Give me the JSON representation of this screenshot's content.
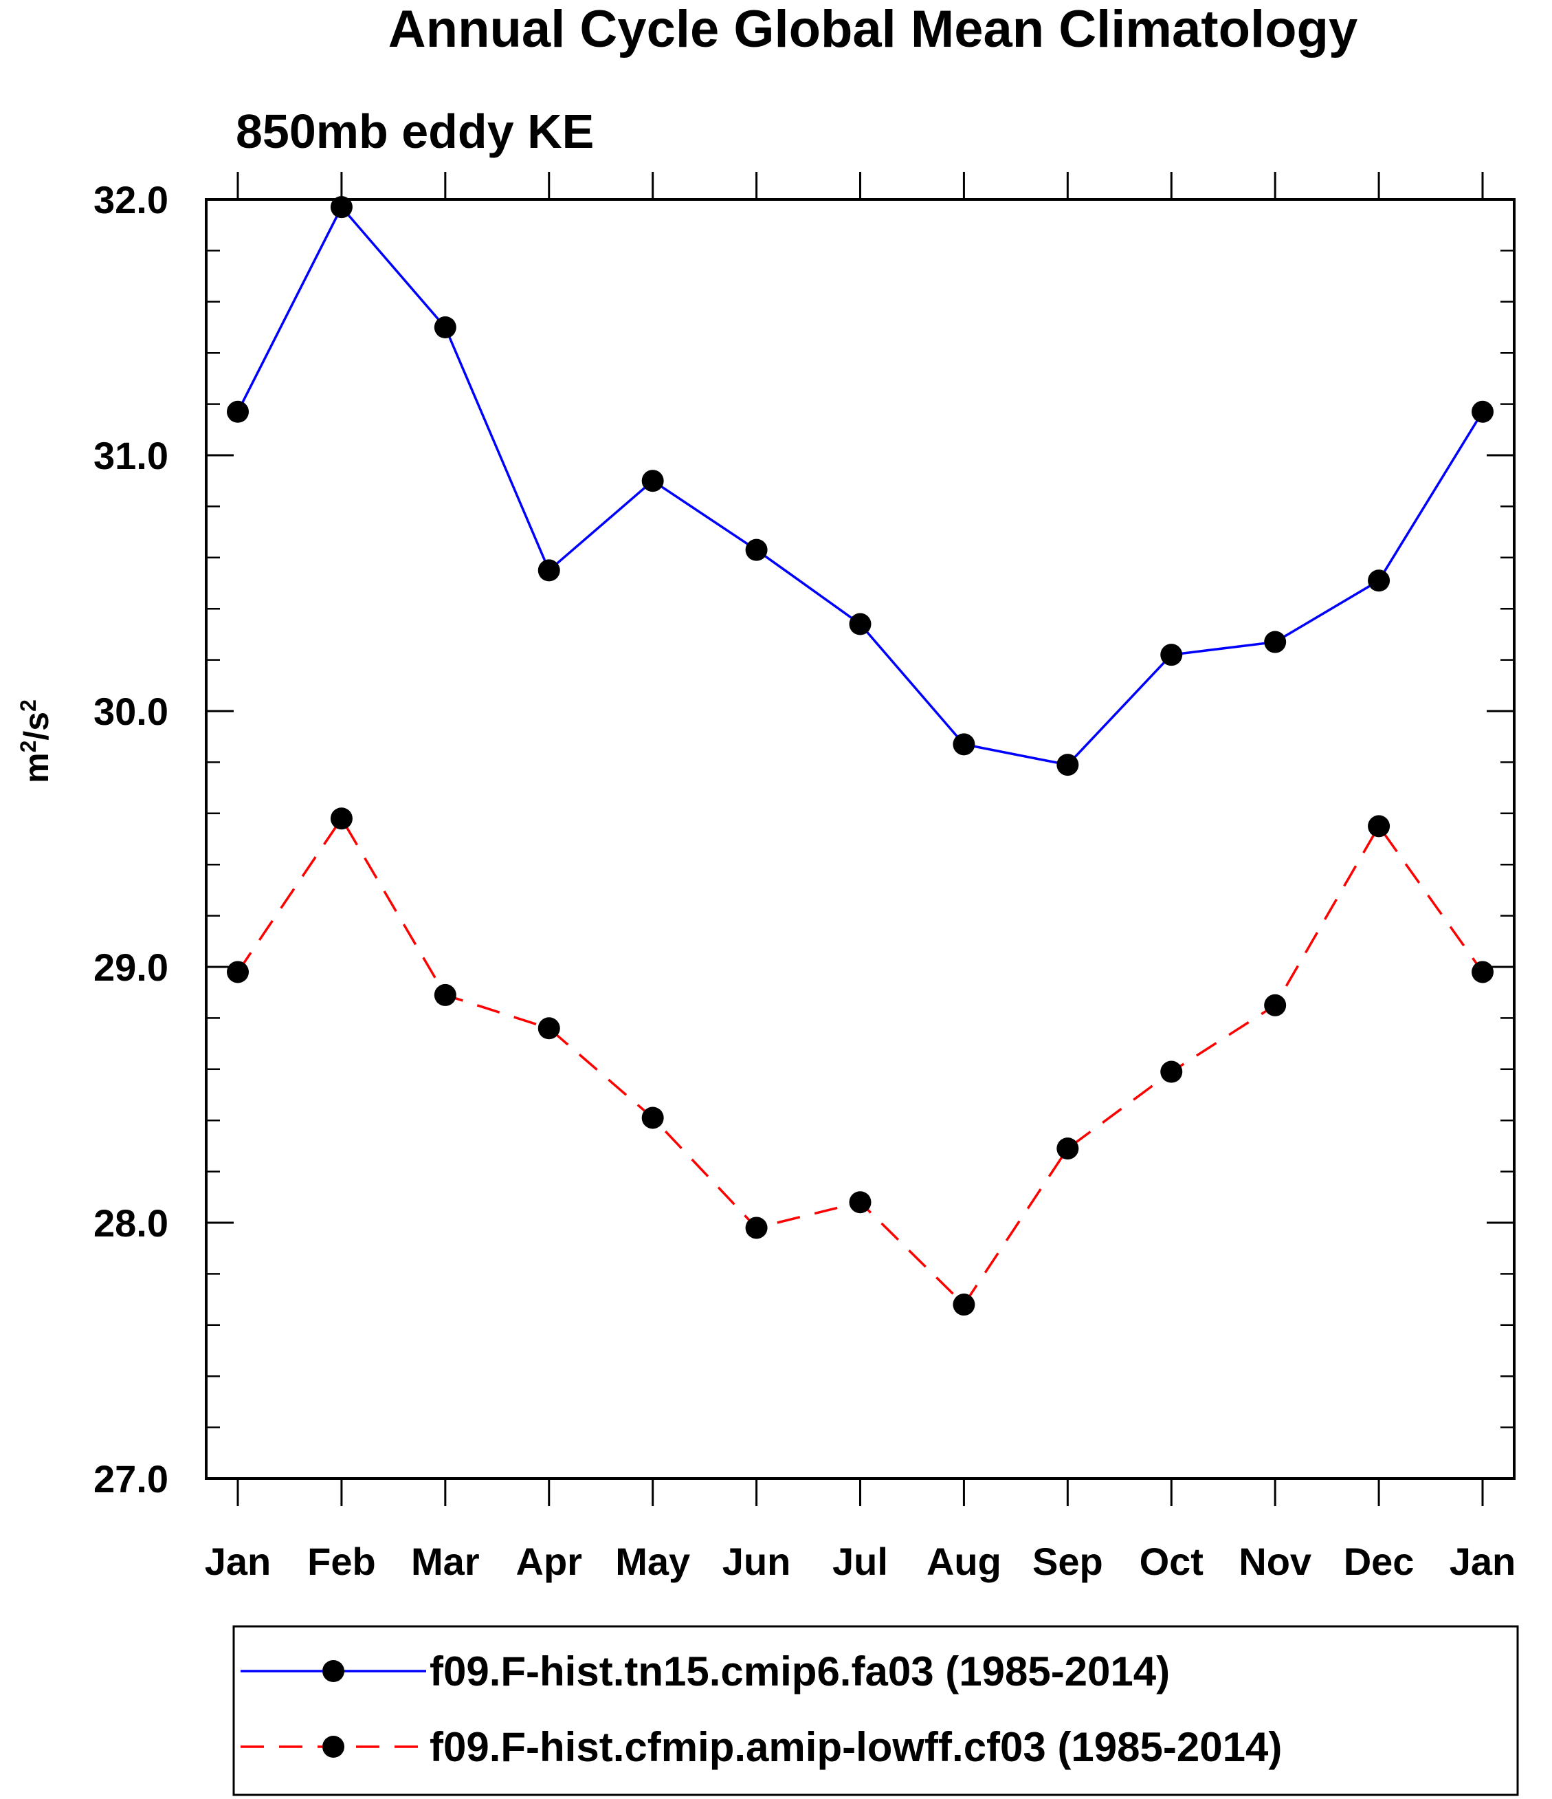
{
  "chart_data": {
    "type": "line",
    "title": "Annual Cycle Global Mean Climatology",
    "subtitle": "850mb eddy KE",
    "ylabel_base": "m",
    "ylabel_mid": "/s",
    "ylabel_sup": "2",
    "categories": [
      "Jan",
      "Feb",
      "Mar",
      "Apr",
      "May",
      "Jun",
      "Jul",
      "Aug",
      "Sep",
      "Oct",
      "Nov",
      "Dec",
      "Jan"
    ],
    "ylim": [
      27.0,
      32.0
    ],
    "y_major_ticks": [
      27.0,
      28.0,
      29.0,
      30.0,
      31.0,
      32.0
    ],
    "y_tick_labels": [
      "27.0",
      "28.0",
      "29.0",
      "30.0",
      "31.0",
      "32.0"
    ],
    "y_minor_step": 0.2,
    "grid": false,
    "legend_position": "bottom",
    "series": [
      {
        "name": "f09.F-hist.tn15.cmip6.fa03 (1985-2014)",
        "color": "#0000ff",
        "line_style": "solid",
        "marker": "filled-circle",
        "values": [
          31.17,
          31.97,
          31.5,
          30.55,
          30.9,
          30.63,
          30.34,
          29.87,
          29.79,
          30.22,
          30.27,
          30.51,
          31.17
        ]
      },
      {
        "name": "f09.F-hist.cfmip.amip-lowff.cf03 (1985-2014)",
        "color": "#ff0000",
        "line_style": "dashed",
        "marker": "filled-circle",
        "values": [
          28.98,
          29.58,
          28.89,
          28.76,
          28.41,
          27.98,
          28.08,
          27.68,
          28.29,
          28.59,
          28.85,
          29.55,
          28.98
        ]
      }
    ]
  }
}
